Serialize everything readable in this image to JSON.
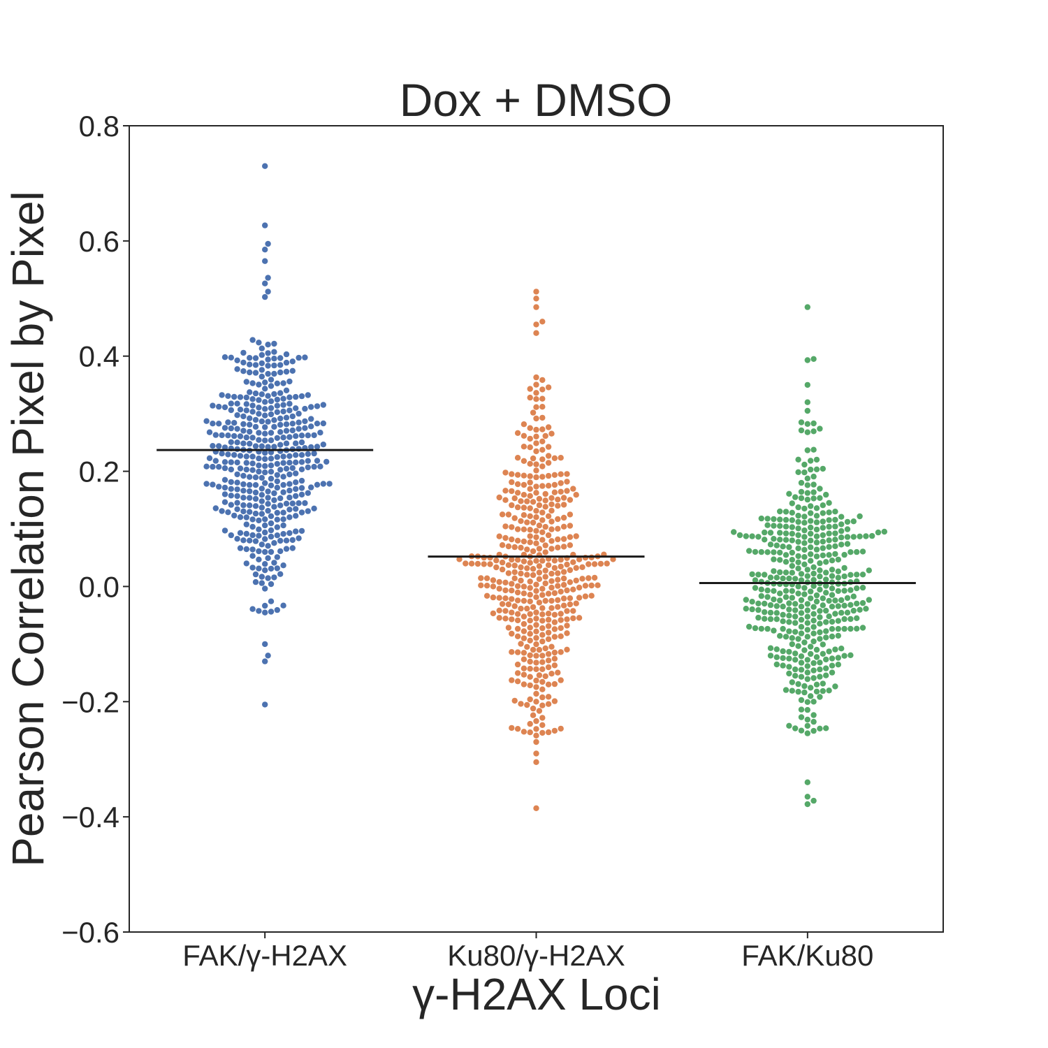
{
  "chart_data": {
    "type": "scatter",
    "subtype": "swarm",
    "title": "Dox + DMSO",
    "xlabel": "γ-H2AX Loci",
    "ylabel": "Pearson Correlation Pixel by Pixel",
    "ylim": [
      -0.6,
      0.8
    ],
    "yticks": [
      "−0.6",
      "−0.4",
      "−0.2",
      "0.0",
      "0.2",
      "0.4",
      "0.6",
      "0.8"
    ],
    "grid": false,
    "legend": "none",
    "categories": [
      "FAK/γ-H2AX",
      "Ku80/γ-H2AX",
      "FAK/Ku80"
    ],
    "series": [
      {
        "color": "#4c72b0",
        "mean": 0.237,
        "count": 430,
        "median": 0.225,
        "sd": 0.12,
        "min": -0.205,
        "max": 0.73,
        "outliers": [
          0.73,
          0.627,
          0.595,
          0.585,
          0.565,
          -0.1,
          -0.12,
          -0.13,
          -0.205
        ]
      },
      {
        "color": "#dd8452",
        "mean": 0.052,
        "count": 440,
        "median": 0.04,
        "sd": 0.13,
        "min": -0.385,
        "max": 0.512,
        "outliers": [
          0.512,
          0.5,
          0.485,
          0.46,
          0.455,
          0.44,
          -0.27,
          -0.29,
          -0.305,
          -0.385
        ]
      },
      {
        "color": "#55a868",
        "mean": 0.006,
        "count": 440,
        "median": 0.0,
        "sd": 0.11,
        "min": -0.378,
        "max": 0.485,
        "outliers": [
          0.485,
          0.395,
          0.393,
          0.35,
          0.32,
          0.305,
          -0.255,
          -0.34,
          -0.365,
          -0.372,
          -0.378
        ]
      }
    ]
  }
}
